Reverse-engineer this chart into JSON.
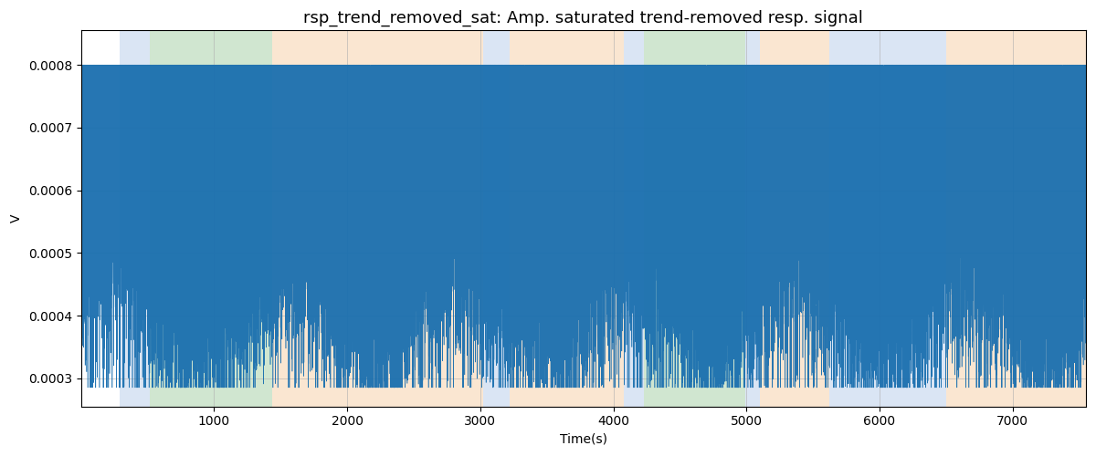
{
  "title": "rsp_trend_removed_sat: Amp. saturated trend-removed resp. signal",
  "xlabel": "Time(s)",
  "ylabel": "V",
  "xlim": [
    0,
    7550
  ],
  "ylim": [
    0.000255,
    0.000855
  ],
  "yticks": [
    0.0003,
    0.0004,
    0.0005,
    0.0006,
    0.0007,
    0.0008
  ],
  "xticks": [
    1000,
    2000,
    3000,
    4000,
    5000,
    6000,
    7000
  ],
  "signal_color": "#1a6faf",
  "background_color": "#ffffff",
  "grid_color": "#b0b0b0",
  "bands": [
    {
      "xmin": 290,
      "xmax": 520,
      "color": "#aec6e8",
      "alpha": 0.45
    },
    {
      "xmin": 520,
      "xmax": 1440,
      "color": "#98c898",
      "alpha": 0.45
    },
    {
      "xmin": 1440,
      "xmax": 3020,
      "color": "#f5c99a",
      "alpha": 0.45
    },
    {
      "xmin": 3020,
      "xmax": 3220,
      "color": "#aec6e8",
      "alpha": 0.45
    },
    {
      "xmin": 3220,
      "xmax": 4080,
      "color": "#f5c99a",
      "alpha": 0.45
    },
    {
      "xmin": 4080,
      "xmax": 4230,
      "color": "#aec6e8",
      "alpha": 0.45
    },
    {
      "xmin": 4230,
      "xmax": 4990,
      "color": "#98c898",
      "alpha": 0.45
    },
    {
      "xmin": 4990,
      "xmax": 5100,
      "color": "#aec6e8",
      "alpha": 0.45
    },
    {
      "xmin": 5100,
      "xmax": 5620,
      "color": "#f5c99a",
      "alpha": 0.45
    },
    {
      "xmin": 5620,
      "xmax": 5750,
      "color": "#aec6e8",
      "alpha": 0.45
    },
    {
      "xmin": 5750,
      "xmax": 6500,
      "color": "#aec6e8",
      "alpha": 0.45
    },
    {
      "xmin": 6500,
      "xmax": 7550,
      "color": "#f5c99a",
      "alpha": 0.45
    }
  ],
  "seed": 7,
  "n_points": 75000,
  "sat_upper": 0.0008,
  "sat_lower": 0.000285,
  "title_fontsize": 13
}
